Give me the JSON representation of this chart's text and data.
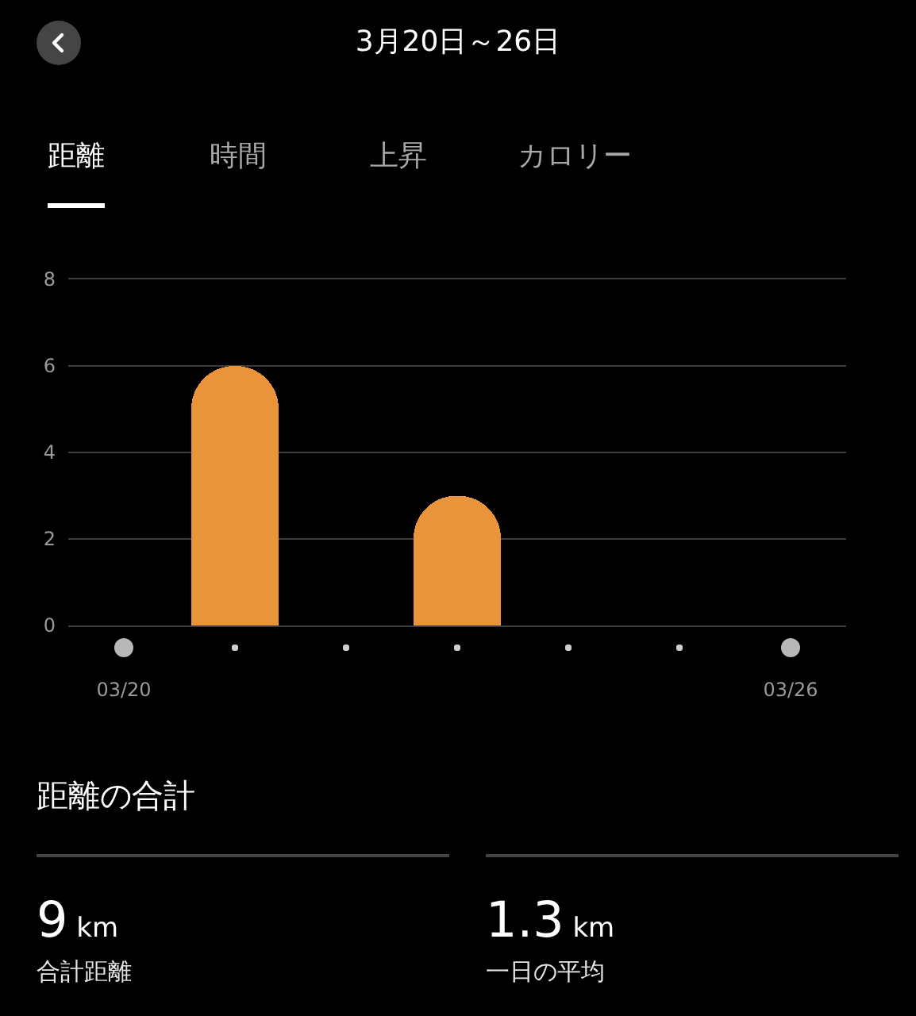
{
  "chart_data": [
    {
      "type": "bar",
      "title": "3月20日～26日",
      "annotations": [
        "距離",
        "時間",
        "上昇",
        "カロリー"
      ],
      "categories": [
        "03/20",
        null,
        null,
        null,
        null,
        null,
        "03/26"
      ],
      "values": [
        0,
        6,
        0,
        3,
        0,
        0,
        0
      ],
      "color": "#e9933a",
      "ylim": [
        0,
        8
      ],
      "yticks": [
        0,
        2,
        4,
        6,
        8
      ],
      "grid": "y"
    },
    {
      "type": "other",
      "title": "距離の合計",
      "annotations": [
        "9 km",
        "合計距離",
        "1.3 km",
        "一日の平均"
      ]
    }
  ]
}
